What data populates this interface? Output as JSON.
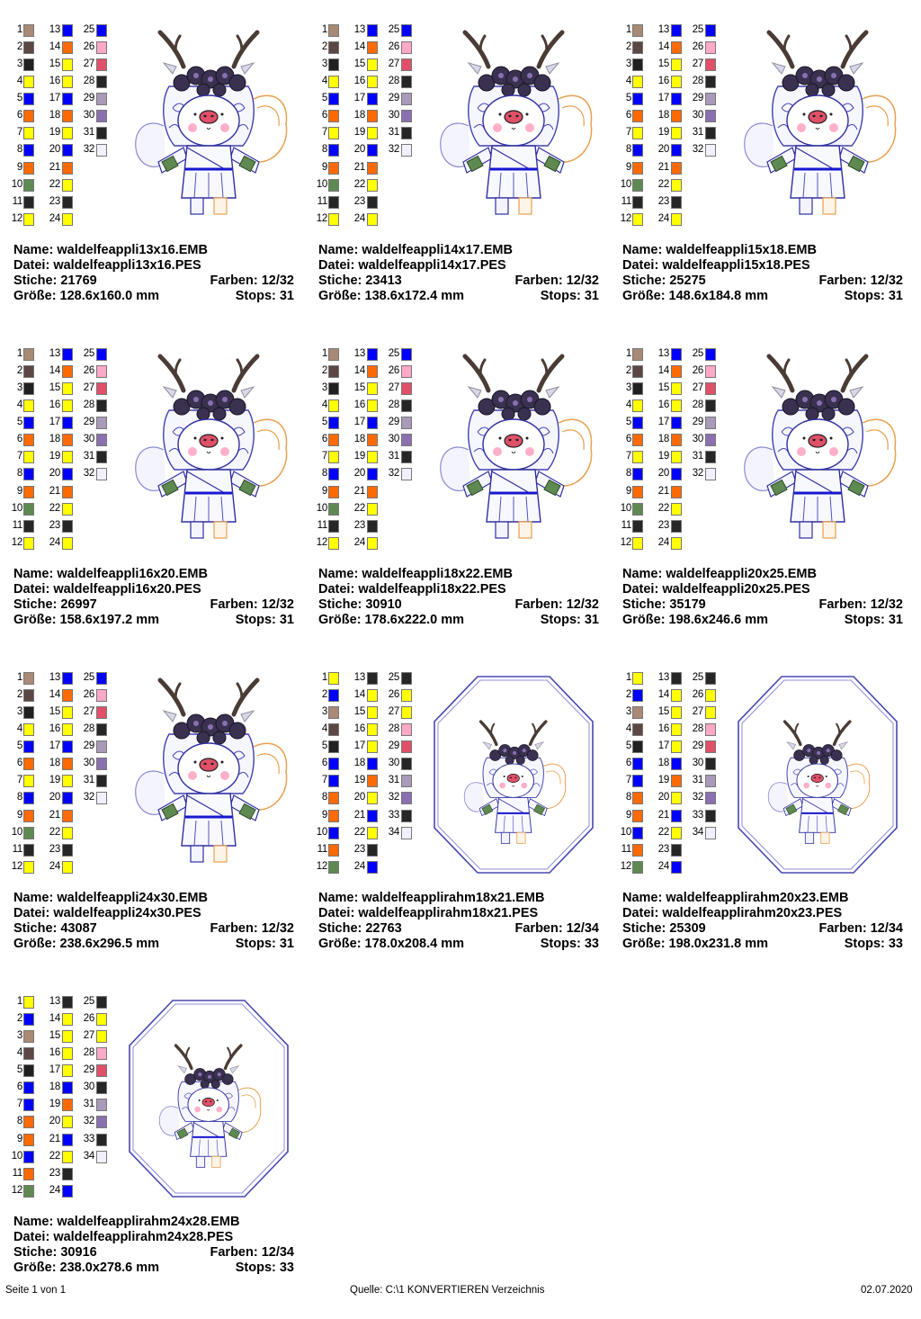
{
  "labels": {
    "name": "Name:",
    "file": "Datei:",
    "stitches": "Stiche:",
    "colors": "Farben:",
    "size": "Größe:",
    "stops": "Stops:"
  },
  "palette_a": [
    "#a88a76",
    "#5b4743",
    "#202020",
    "#ffff00",
    "#0000ff",
    "#ff6a00",
    "#ffff00",
    "#0000ff",
    "#ff6a00",
    "#5e8a52",
    "#262626",
    "#ffff00",
    "#0000ff",
    "#ff6a00",
    "#ffff00",
    "#ffff00",
    "#0000ff",
    "#ff6a00",
    "#ffff00",
    "#0000ff",
    "#ff6a00",
    "#ffff00",
    "#262626",
    "#ffff00",
    "#0000ff",
    "#ffa8c8",
    "#e05068",
    "#262626",
    "#a89ab8",
    "#8a70b0",
    "#262626",
    "#f0f0ff"
  ],
  "palette_b": [
    "#ffff00",
    "#0000ff",
    "#a88a76",
    "#5b4743",
    "#202020",
    "#0000ff",
    "#0000ff",
    "#ff6a00",
    "#ff6a00",
    "#0000ff",
    "#ff6a00",
    "#5e8a52",
    "#262626",
    "#ffff00",
    "#ffff00",
    "#ffff00",
    "#ffff00",
    "#0000ff",
    "#ff6a00",
    "#ffff00",
    "#0000ff",
    "#ffff00",
    "#262626",
    "#0000ff",
    "#262626",
    "#ffff00",
    "#ffff00",
    "#ffa8c8",
    "#e05068",
    "#262626",
    "#a89ab8",
    "#8a70b0",
    "#262626",
    "#f0f0ff"
  ],
  "designs": [
    {
      "name": "waldelfeappli13x16.EMB",
      "file": "waldelfeappli13x16.PES",
      "stitches": "21769",
      "colors": "12/32",
      "size": "128.6x160.0 mm",
      "stops": "31",
      "frame": false,
      "palette": "a"
    },
    {
      "name": "waldelfeappli14x17.EMB",
      "file": "waldelfeappli14x17.PES",
      "stitches": "23413",
      "colors": "12/32",
      "size": "138.6x172.4 mm",
      "stops": "31",
      "frame": false,
      "palette": "a"
    },
    {
      "name": "waldelfeappli15x18.EMB",
      "file": "waldelfeappli15x18.PES",
      "stitches": "25275",
      "colors": "12/32",
      "size": "148.6x184.8 mm",
      "stops": "31",
      "frame": false,
      "palette": "a"
    },
    {
      "name": "waldelfeappli16x20.EMB",
      "file": "waldelfeappli16x20.PES",
      "stitches": "26997",
      "colors": "12/32",
      "size": "158.6x197.2 mm",
      "stops": "31",
      "frame": false,
      "palette": "a"
    },
    {
      "name": "waldelfeappli18x22.EMB",
      "file": "waldelfeappli18x22.PES",
      "stitches": "30910",
      "colors": "12/32",
      "size": "178.6x222.0 mm",
      "stops": "31",
      "frame": false,
      "palette": "a"
    },
    {
      "name": "waldelfeappli20x25.EMB",
      "file": "waldelfeappli20x25.PES",
      "stitches": "35179",
      "colors": "12/32",
      "size": "198.6x246.6 mm",
      "stops": "31",
      "frame": false,
      "palette": "a"
    },
    {
      "name": "waldelfeappli24x30.EMB",
      "file": "waldelfeappli24x30.PES",
      "stitches": "43087",
      "colors": "12/32",
      "size": "238.6x296.5 mm",
      "stops": "31",
      "frame": false,
      "palette": "a"
    },
    {
      "name": "waldelfeapplirahm18x21.EMB",
      "file": "waldelfeapplirahm18x21.PES",
      "stitches": "22763",
      "colors": "12/34",
      "size": "178.0x208.4 mm",
      "stops": "33",
      "frame": true,
      "palette": "b"
    },
    {
      "name": "waldelfeapplirahm20x23.EMB",
      "file": "waldelfeapplirahm20x23.PES",
      "stitches": "25309",
      "colors": "12/34",
      "size": "198.0x231.8 mm",
      "stops": "33",
      "frame": true,
      "palette": "b"
    },
    {
      "name": "waldelfeapplirahm24x28.EMB",
      "file": "waldelfeapplirahm24x28.PES",
      "stitches": "30916",
      "colors": "12/34",
      "size": "238.0x278.6 mm",
      "stops": "33",
      "frame": true,
      "palette": "b"
    }
  ],
  "footer": {
    "page": "Seite 1 von 1",
    "source": "Quelle: C:\\1 KONVERTIEREN Verzeichnis",
    "date": "02.07.2020"
  }
}
